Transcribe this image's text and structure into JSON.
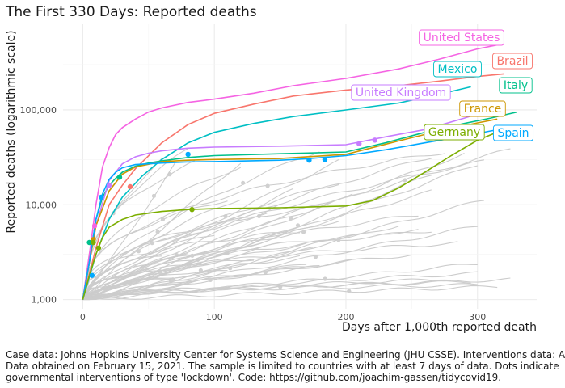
{
  "chart_data": {
    "type": "line",
    "title": "The First 330 Days: Reported deaths",
    "xlabel": "Days after 1,000th reported death",
    "ylabel": "Reported deaths (logarithmic scale)",
    "x_range": [
      -15,
      345
    ],
    "y_scale": "log10",
    "y_range": [
      800,
      800000
    ],
    "x_ticks": [
      {
        "value": 0,
        "label": "0"
      },
      {
        "value": 100,
        "label": "100"
      },
      {
        "value": 200,
        "label": "200"
      },
      {
        "value": 300,
        "label": "300"
      }
    ],
    "y_ticks": [
      {
        "value": 1000,
        "label": "1,000"
      },
      {
        "value": 10000,
        "label": "10,000"
      },
      {
        "value": 100000,
        "label": "100,000"
      }
    ],
    "highlight_series": [
      {
        "name": "United States",
        "color": "#f564e3",
        "points": [
          [
            0,
            1000
          ],
          [
            5,
            3000
          ],
          [
            10,
            10000
          ],
          [
            15,
            25000
          ],
          [
            20,
            40000
          ],
          [
            25,
            55000
          ],
          [
            30,
            65000
          ],
          [
            40,
            80000
          ],
          [
            50,
            95000
          ],
          [
            60,
            105000
          ],
          [
            80,
            120000
          ],
          [
            100,
            130000
          ],
          [
            130,
            150000
          ],
          [
            160,
            180000
          ],
          [
            200,
            215000
          ],
          [
            240,
            270000
          ],
          [
            270,
            340000
          ],
          [
            300,
            440000
          ],
          [
            320,
            500000
          ]
        ],
        "lockdown": [
          {
            "day": 9,
            "value": 6000
          }
        ],
        "label": {
          "x": 571,
          "y": 46
        }
      },
      {
        "name": "Brazil",
        "color": "#f8766d",
        "points": [
          [
            0,
            1000
          ],
          [
            10,
            3500
          ],
          [
            20,
            10000
          ],
          [
            30,
            16000
          ],
          [
            40,
            24000
          ],
          [
            60,
            45000
          ],
          [
            80,
            70000
          ],
          [
            100,
            92000
          ],
          [
            130,
            115000
          ],
          [
            160,
            140000
          ],
          [
            200,
            162000
          ],
          [
            240,
            180000
          ],
          [
            270,
            200000
          ],
          [
            300,
            225000
          ],
          [
            320,
            240000
          ]
        ],
        "lockdown": [
          {
            "day": 36,
            "value": 15500
          }
        ],
        "label": {
          "x": 634,
          "y": 75
        }
      },
      {
        "name": "Mexico",
        "color": "#00bfc4",
        "points": [
          [
            0,
            1000
          ],
          [
            10,
            3000
          ],
          [
            20,
            7000
          ],
          [
            30,
            12000
          ],
          [
            45,
            20000
          ],
          [
            60,
            30000
          ],
          [
            80,
            45000
          ],
          [
            100,
            58000
          ],
          [
            130,
            72000
          ],
          [
            160,
            85000
          ],
          [
            200,
            100000
          ],
          [
            240,
            118000
          ],
          [
            270,
            145000
          ],
          [
            295,
            175000
          ]
        ],
        "lockdown": [],
        "label": {
          "x": 566,
          "y": 85
        }
      },
      {
        "name": "Italy",
        "color": "#00c08b",
        "points": [
          [
            0,
            1000
          ],
          [
            5,
            2500
          ],
          [
            10,
            7000
          ],
          [
            15,
            12000
          ],
          [
            20,
            16000
          ],
          [
            25,
            19000
          ],
          [
            30,
            22000
          ],
          [
            40,
            25500
          ],
          [
            50,
            27500
          ],
          [
            60,
            29000
          ],
          [
            80,
            31500
          ],
          [
            100,
            33000
          ],
          [
            150,
            34500
          ],
          [
            200,
            36000
          ],
          [
            230,
            45000
          ],
          [
            260,
            58000
          ],
          [
            290,
            72000
          ],
          [
            310,
            82000
          ],
          [
            330,
            95000
          ]
        ],
        "lockdown": [
          {
            "day": 5,
            "value": 4000
          },
          {
            "day": 28,
            "value": 19500
          }
        ],
        "label": {
          "x": 638,
          "y": 105
        }
      },
      {
        "name": "United Kingdom",
        "color": "#c77cff",
        "points": [
          [
            0,
            1000
          ],
          [
            10,
            6000
          ],
          [
            20,
            18000
          ],
          [
            30,
            27000
          ],
          [
            40,
            32000
          ],
          [
            50,
            35000
          ],
          [
            60,
            37000
          ],
          [
            80,
            39500
          ],
          [
            100,
            40500
          ],
          [
            150,
            41500
          ],
          [
            200,
            43000
          ],
          [
            230,
            52000
          ],
          [
            260,
            62000
          ],
          [
            290,
            82000
          ],
          [
            310,
            100000
          ],
          [
            320,
            115000
          ]
        ],
        "lockdown": [
          {
            "day": 20,
            "value": 16000
          },
          {
            "day": 210,
            "value": 44000
          },
          {
            "day": 222,
            "value": 48000
          }
        ],
        "label": {
          "x": 496,
          "y": 114
        }
      },
      {
        "name": "France",
        "color": "#cd9600",
        "points": [
          [
            0,
            1000
          ],
          [
            10,
            6000
          ],
          [
            20,
            14000
          ],
          [
            30,
            21000
          ],
          [
            40,
            25000
          ],
          [
            60,
            28500
          ],
          [
            80,
            29500
          ],
          [
            100,
            30000
          ],
          [
            150,
            30700
          ],
          [
            200,
            34000
          ],
          [
            220,
            40000
          ],
          [
            240,
            47000
          ],
          [
            260,
            55000
          ],
          [
            280,
            64000
          ],
          [
            300,
            73000
          ],
          [
            315,
            80000
          ]
        ],
        "lockdown": [
          {
            "day": 8,
            "value": 4300
          }
        ],
        "label": {
          "x": 597,
          "y": 134
        }
      },
      {
        "name": "Spain",
        "color": "#00a9ff",
        "points": [
          [
            0,
            1000
          ],
          [
            5,
            2500
          ],
          [
            10,
            7000
          ],
          [
            15,
            13000
          ],
          [
            20,
            18500
          ],
          [
            25,
            22000
          ],
          [
            30,
            24500
          ],
          [
            40,
            26500
          ],
          [
            60,
            27500
          ],
          [
            80,
            28300
          ],
          [
            100,
            28500
          ],
          [
            150,
            29500
          ],
          [
            170,
            30500
          ],
          [
            200,
            33000
          ],
          [
            230,
            38000
          ],
          [
            260,
            45000
          ],
          [
            290,
            53000
          ],
          [
            310,
            60000
          ],
          [
            325,
            65000
          ]
        ],
        "lockdown": [
          {
            "day": 7,
            "value": 1800
          },
          {
            "day": 14,
            "value": 12000
          },
          {
            "day": 80,
            "value": 34000
          },
          {
            "day": 172,
            "value": 29500
          },
          {
            "day": 184,
            "value": 30000
          }
        ],
        "label": {
          "x": 635,
          "y": 164
        }
      },
      {
        "name": "Germany",
        "color": "#7cae00",
        "points": [
          [
            0,
            1000
          ],
          [
            5,
            1800
          ],
          [
            10,
            3000
          ],
          [
            15,
            4500
          ],
          [
            20,
            5800
          ],
          [
            30,
            7000
          ],
          [
            40,
            7800
          ],
          [
            60,
            8500
          ],
          [
            80,
            8900
          ],
          [
            100,
            9100
          ],
          [
            150,
            9300
          ],
          [
            200,
            9700
          ],
          [
            220,
            11000
          ],
          [
            240,
            15000
          ],
          [
            260,
            22000
          ],
          [
            280,
            33000
          ],
          [
            300,
            48000
          ],
          [
            320,
            62000
          ]
        ],
        "lockdown": [
          {
            "day": 8,
            "value": 4000
          },
          {
            "day": 12,
            "value": 3500
          },
          {
            "day": 83,
            "value": 8900
          }
        ],
        "label": {
          "x": 562,
          "y": 163
        }
      }
    ]
  },
  "caption": {
    "line1": "Case data: Johns Hopkins University Center for Systems Science and Engineering (JHU CSSE). Interventions data: A",
    "line2": "Data obtained on February 15, 2021. The sample is limited to countries with at least 7 days of data. Dots indicate",
    "line3": "governmental interventions of type 'lockdown'. Code: https://github.com/joachim-gassen/tidycovid19."
  }
}
